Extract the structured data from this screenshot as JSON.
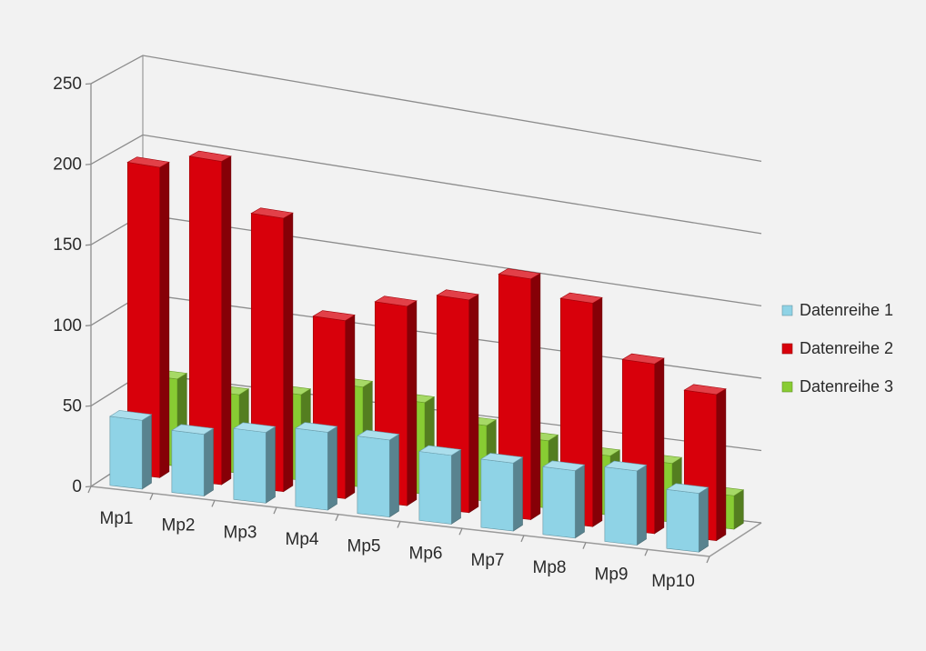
{
  "chart_data": {
    "type": "bar",
    "categories": [
      "Mp1",
      "Mp2",
      "Mp3",
      "Mp4",
      "Mp5",
      "Mp6",
      "Mp7",
      "Mp8",
      "Mp9",
      "Mp10"
    ],
    "series": [
      {
        "name": "Datenreihe 1",
        "color": "#8fd3e6",
        "values": [
          43,
          39,
          45,
          50,
          50,
          45,
          45,
          45,
          50,
          40
        ]
      },
      {
        "name": "Datenreihe 2",
        "color": "#d8000b",
        "values": [
          195,
          205,
          175,
          115,
          130,
          140,
          160,
          150,
          115,
          100
        ]
      },
      {
        "name": "Datenreihe 3",
        "color": "#88cc33",
        "values": [
          55,
          50,
          55,
          65,
          60,
          50,
          45,
          40,
          40,
          23
        ]
      }
    ],
    "ylim": [
      0,
      250
    ],
    "yticks": [
      0,
      50,
      100,
      150,
      200,
      250
    ],
    "grid": true,
    "legend": "right"
  }
}
